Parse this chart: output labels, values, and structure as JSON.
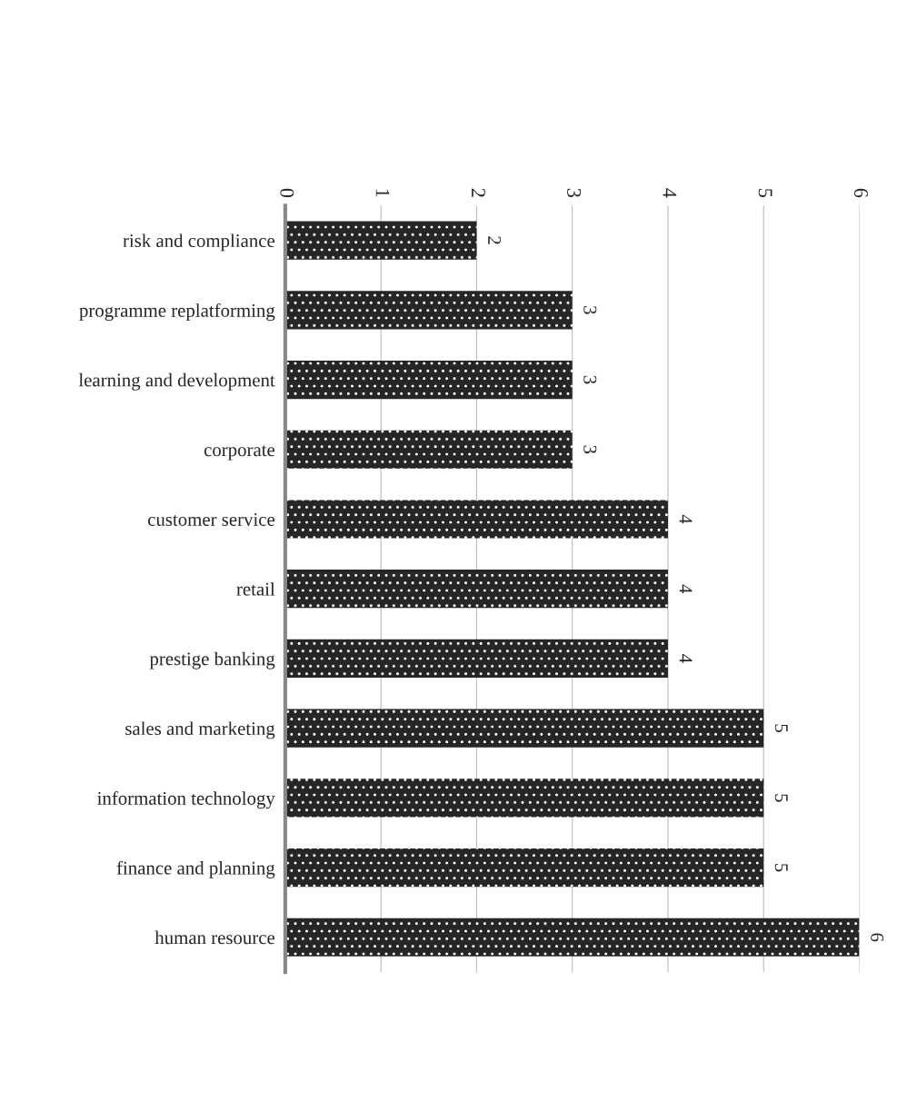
{
  "chart_data": {
    "type": "bar",
    "orientation": "horizontal",
    "categories": [
      "risk and compliance",
      "programme replatforming",
      "learning and development",
      "corporate",
      "customer service",
      "retail",
      "prestige banking",
      "sales and marketing",
      "information technology",
      "finance and planning",
      "human resource"
    ],
    "values": [
      2,
      3,
      3,
      3,
      4,
      4,
      4,
      5,
      5,
      5,
      6
    ],
    "color": "#262626",
    "xlim": [
      0,
      6
    ],
    "xticks": [
      0,
      1,
      2,
      3,
      4,
      5,
      6
    ],
    "grid": "x",
    "data_labels": true
  }
}
